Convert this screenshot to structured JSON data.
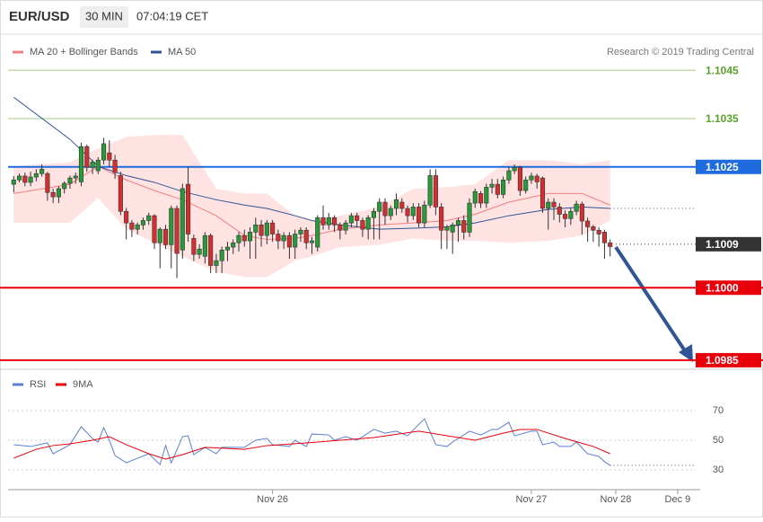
{
  "chart_data": [
    {
      "type": "candlestick",
      "title": "EUR/USD",
      "interval": "30 MIN",
      "time": "07:04:19 CET",
      "credit": "Research © 2019 Trading Central",
      "xlim": [
        -1,
        122
      ],
      "ylim": [
        1.09835,
        1.1048
      ],
      "up_color": "#279b37",
      "down_color": "#d32f2f",
      "candles": [
        [
          1.10214,
          1.10231,
          1.10197,
          1.10223
        ],
        [
          1.10223,
          1.10236,
          1.10218,
          1.10231
        ],
        [
          1.10231,
          1.10238,
          1.1021,
          1.10218
        ],
        [
          1.10218,
          1.1024,
          1.1021,
          1.10229
        ],
        [
          1.10229,
          1.10245,
          1.1022,
          1.10236
        ],
        [
          1.10236,
          1.10255,
          1.1023,
          1.10245
        ],
        [
          1.10236,
          1.1024,
          1.1018,
          1.10197
        ],
        [
          1.10197,
          1.10205,
          1.10175,
          1.10188
        ],
        [
          1.10188,
          1.1021,
          1.10175,
          1.10205
        ],
        [
          1.10205,
          1.1022,
          1.10195,
          1.10216
        ],
        [
          1.10216,
          1.10232,
          1.10205,
          1.10227
        ],
        [
          1.10227,
          1.10238,
          1.10215,
          1.10231
        ],
        [
          1.10219,
          1.103,
          1.1021,
          1.10292
        ],
        [
          1.10292,
          1.10296,
          1.1024,
          1.10249
        ],
        [
          1.10249,
          1.10265,
          1.10235,
          1.1026
        ],
        [
          1.10242,
          1.1027,
          1.10235,
          1.10264
        ],
        [
          1.10264,
          1.1031,
          1.10255,
          1.10298
        ],
        [
          1.10279,
          1.10305,
          1.1025,
          1.10264
        ],
        [
          1.10264,
          1.10275,
          1.10225,
          1.10238
        ],
        [
          1.10232,
          1.1024,
          1.1015,
          1.10158
        ],
        [
          1.10158,
          1.10165,
          1.101,
          1.10134
        ],
        [
          1.10134,
          1.1014,
          1.10105,
          1.10121
        ],
        [
          1.10121,
          1.10135,
          1.1011,
          1.1013
        ],
        [
          1.1013,
          1.10145,
          1.1012,
          1.10139
        ],
        [
          1.10139,
          1.10155,
          1.1013,
          1.10149
        ],
        [
          1.10149,
          1.10152,
          1.1008,
          1.10093
        ],
        [
          1.10093,
          1.10125,
          1.1004,
          1.10121
        ],
        [
          1.10121,
          1.1013,
          1.1008,
          1.10089
        ],
        [
          1.10089,
          1.1017,
          1.1004,
          1.10164
        ],
        [
          1.10164,
          1.1017,
          1.1002,
          1.10071
        ],
        [
          1.10078,
          1.10215,
          1.1006,
          1.10205
        ],
        [
          1.10214,
          1.1025,
          1.10095,
          1.10111
        ],
        [
          1.10102,
          1.1011,
          1.10055,
          1.10069
        ],
        [
          1.10069,
          1.1009,
          1.1006,
          1.1008
        ],
        [
          1.10065,
          1.10115,
          1.1005,
          1.10108
        ],
        [
          1.10108,
          1.10112,
          1.1003,
          1.10046
        ],
        [
          1.10046,
          1.1007,
          1.1003,
          1.10056
        ],
        [
          1.10056,
          1.10085,
          1.1003,
          1.10078
        ],
        [
          1.10078,
          1.10095,
          1.10055,
          1.10084
        ],
        [
          1.10084,
          1.101,
          1.1007,
          1.10093
        ],
        [
          1.10093,
          1.10115,
          1.10075,
          1.10108
        ],
        [
          1.10108,
          1.1012,
          1.10085,
          1.10097
        ],
        [
          1.10097,
          1.10125,
          1.1006,
          1.10115
        ],
        [
          1.10115,
          1.10145,
          1.1006,
          1.1013
        ],
        [
          1.1013,
          1.1014,
          1.10085,
          1.10108
        ],
        [
          1.10108,
          1.1014,
          1.1009,
          1.10134
        ],
        [
          1.10134,
          1.1014,
          1.10095,
          1.10111
        ],
        [
          1.10111,
          1.1012,
          1.1008,
          1.10097
        ],
        [
          1.10097,
          1.10115,
          1.1008,
          1.10108
        ],
        [
          1.10108,
          1.10115,
          1.1006,
          1.10084
        ],
        [
          1.10084,
          1.1012,
          1.1006,
          1.10111
        ],
        [
          1.10111,
          1.10125,
          1.10095,
          1.10119
        ],
        [
          1.10119,
          1.10125,
          1.1008,
          1.10093
        ],
        [
          1.10093,
          1.10105,
          1.1007,
          1.10097
        ],
        [
          1.10084,
          1.1015,
          1.10075,
          1.10145
        ],
        [
          1.10145,
          1.1017,
          1.1012,
          1.1013
        ],
        [
          1.1013,
          1.10155,
          1.1012,
          1.10145
        ],
        [
          1.10145,
          1.1015,
          1.10115,
          1.1013
        ],
        [
          1.1013,
          1.10135,
          1.101,
          1.10119
        ],
        [
          1.10119,
          1.1014,
          1.1011,
          1.10134
        ],
        [
          1.10134,
          1.10155,
          1.10125,
          1.10149
        ],
        [
          1.10149,
          1.10155,
          1.10125,
          1.10139
        ],
        [
          1.10139,
          1.10145,
          1.10105,
          1.10121
        ],
        [
          1.10121,
          1.1015,
          1.101,
          1.10145
        ],
        [
          1.10145,
          1.10165,
          1.101,
          1.10158
        ],
        [
          1.10158,
          1.10185,
          1.101,
          1.10177
        ],
        [
          1.10177,
          1.10185,
          1.1013,
          1.10149
        ],
        [
          1.10149,
          1.1017,
          1.1014,
          1.10164
        ],
        [
          1.10164,
          1.10195,
          1.1015,
          1.10182
        ],
        [
          1.10177,
          1.10185,
          1.10155,
          1.10164
        ],
        [
          1.10164,
          1.1017,
          1.10135,
          1.10149
        ],
        [
          1.10149,
          1.10175,
          1.1014,
          1.10167
        ],
        [
          1.10167,
          1.10175,
          1.10125,
          1.10134
        ],
        [
          1.10134,
          1.1018,
          1.10125,
          1.10171
        ],
        [
          1.10171,
          1.10245,
          1.10165,
          1.10232
        ],
        [
          1.10232,
          1.10245,
          1.1015,
          1.10167
        ],
        [
          1.10167,
          1.10175,
          1.1008,
          1.10119
        ],
        [
          1.10119,
          1.1013,
          1.1008,
          1.10126
        ],
        [
          1.10115,
          1.10135,
          1.1007,
          1.1013
        ],
        [
          1.1013,
          1.10145,
          1.10095,
          1.10139
        ],
        [
          1.10139,
          1.1015,
          1.101,
          1.10115
        ],
        [
          1.10115,
          1.10185,
          1.10105,
          1.10175
        ],
        [
          1.10175,
          1.10205,
          1.10165,
          1.10199
        ],
        [
          1.10195,
          1.102,
          1.10165,
          1.10175
        ],
        [
          1.10175,
          1.10215,
          1.10165,
          1.10208
        ],
        [
          1.10208,
          1.10225,
          1.10195,
          1.10214
        ],
        [
          1.10214,
          1.10225,
          1.10185,
          1.10193
        ],
        [
          1.10193,
          1.1023,
          1.10185,
          1.10223
        ],
        [
          1.10223,
          1.1025,
          1.10215,
          1.10242
        ],
        [
          1.10242,
          1.10255,
          1.10235,
          1.10249
        ],
        [
          1.10249,
          1.10252,
          1.1019,
          1.10201
        ],
        [
          1.10201,
          1.1023,
          1.10195,
          1.10223
        ],
        [
          1.10223,
          1.10238,
          1.10215,
          1.10231
        ],
        [
          1.10231,
          1.10236,
          1.10205,
          1.10219
        ],
        [
          1.10227,
          1.1023,
          1.10155,
          1.10164
        ],
        [
          1.10164,
          1.10185,
          1.1012,
          1.10177
        ],
        [
          1.10177,
          1.10185,
          1.1014,
          1.10167
        ],
        [
          1.10167,
          1.10175,
          1.10135,
          1.10152
        ],
        [
          1.10152,
          1.1016,
          1.10125,
          1.10143
        ],
        [
          1.10143,
          1.10165,
          1.1013,
          1.10158
        ],
        [
          1.10158,
          1.1018,
          1.1015,
          1.10173
        ],
        [
          1.10173,
          1.10178,
          1.1011,
          1.10138
        ],
        [
          1.10138,
          1.10145,
          1.10095,
          1.10126
        ],
        [
          1.10126,
          1.1013,
          1.10095,
          1.10119
        ],
        [
          1.10119,
          1.10125,
          1.10085,
          1.10111
        ],
        [
          1.10115,
          1.1012,
          1.1006,
          1.10093
        ],
        [
          1.10093,
          1.101,
          1.10065,
          1.10085
        ]
      ],
      "x": [
        0,
        10,
        15,
        20,
        25,
        30,
        36,
        41,
        45,
        50,
        53,
        58,
        65,
        71,
        77,
        82,
        88,
        95,
        101,
        106
      ],
      "series": [
        {
          "name": "MA 20 + Bollinger Bands",
          "color": "#f08080",
          "values": [
            1.10195,
            1.10214,
            1.10251,
            1.10223,
            1.10201,
            1.10182,
            1.10149,
            1.10108,
            1.101,
            1.10102,
            1.10108,
            1.10121,
            1.1013,
            1.10134,
            1.10139,
            1.10152,
            1.10177,
            1.10195,
            1.10195,
            1.10171
          ]
        },
        {
          "name": "MA 50",
          "color": "#2f5597",
          "values": [
            1.10394,
            1.10307,
            1.10251,
            1.10232,
            1.10218,
            1.10199,
            1.10182,
            1.10171,
            1.10164,
            1.10149,
            1.10139,
            1.1013,
            1.10121,
            1.10123,
            1.10126,
            1.10134,
            1.10149,
            1.10162,
            1.10167,
            1.10164
          ]
        }
      ],
      "bands": {
        "color": "#ffd6d6",
        "upper": [
          1.10251,
          1.1026,
          1.10288,
          1.10312,
          1.10316,
          1.10316,
          1.10205,
          1.10195,
          1.10195,
          1.10149,
          1.10139,
          1.10149,
          1.10167,
          1.10205,
          1.10208,
          1.10214,
          1.10264,
          1.10264,
          1.10256,
          1.10264
        ],
        "lower": [
          1.10134,
          1.10134,
          1.10186,
          1.10121,
          1.10093,
          1.10065,
          1.10033,
          1.10022,
          1.10022,
          1.10056,
          1.10065,
          1.10084,
          1.10089,
          1.10102,
          1.10097,
          1.10097,
          1.10093,
          1.10097,
          1.10108,
          1.10139
        ]
      },
      "levels": [
        {
          "value": 1.1045,
          "label": "1.1045",
          "color": "#5aa02c",
          "style": "text"
        },
        {
          "value": 1.1035,
          "label": "1.1035",
          "color": "#5aa02c",
          "style": "text"
        },
        {
          "value": 1.1025,
          "label": "1.1025",
          "color": "#1e6be0",
          "style": "box"
        },
        {
          "value": 1.1009,
          "label": "1.1009",
          "color": "#333333",
          "style": "dotted"
        },
        {
          "value": 1.1,
          "label": "1.1000",
          "color": "#e8000b",
          "style": "box"
        },
        {
          "value": 1.0985,
          "label": "1.0985",
          "color": "#e8000b",
          "style": "box"
        }
      ]
    },
    {
      "type": "line",
      "xlim": [
        -1,
        122
      ],
      "ylim": [
        20,
        80
      ],
      "yticks": [
        30,
        50,
        70
      ],
      "grid": true,
      "xticks": [
        {
          "value": 46,
          "label": "Nov 26"
        },
        {
          "value": 92,
          "label": "Nov 27"
        },
        {
          "value": 107,
          "label": "Nov 28"
        },
        {
          "value": 118,
          "label": "Dec 9"
        }
      ],
      "series": [
        {
          "name": "RSI",
          "color": "#5b7fd6",
          "x": [
            0,
            3,
            6,
            7,
            10,
            12,
            14,
            15,
            16,
            17,
            18,
            20,
            24,
            26,
            27,
            28,
            30,
            31,
            32,
            34,
            36,
            37,
            41,
            43,
            45,
            46,
            49,
            50,
            52,
            53,
            56,
            57,
            59,
            61,
            64,
            66,
            68,
            70,
            73,
            75,
            77,
            78,
            80,
            81,
            83,
            85,
            86,
            88,
            89,
            92,
            93,
            94,
            96,
            97,
            99,
            100,
            102,
            104,
            105,
            106
          ],
          "values": [
            47,
            45.8,
            48.2,
            40.9,
            47,
            59.1,
            51.2,
            48.8,
            58.5,
            50,
            39.7,
            34.8,
            40.9,
            33.6,
            46.4,
            34.8,
            52.4,
            53,
            40.3,
            45.2,
            40.9,
            45.2,
            45.2,
            50,
            51.2,
            47,
            45.8,
            50,
            45.8,
            54.2,
            53.6,
            50,
            52.4,
            50,
            57.3,
            54.8,
            56.1,
            53,
            64.5,
            47,
            45.8,
            48.8,
            53.6,
            56.1,
            53.6,
            57.3,
            57.3,
            62.1,
            53,
            56.1,
            56.1,
            47,
            48.8,
            45.8,
            45.8,
            48.8,
            40.9,
            39.1,
            35.5,
            33
          ]
        },
        {
          "name": "9MA",
          "color": "#e8000b",
          "x": [
            0,
            4,
            7,
            10,
            14,
            17,
            20,
            24,
            27,
            30,
            34,
            41,
            45,
            52,
            58,
            64,
            72,
            77,
            82,
            87,
            90,
            93,
            98,
            103,
            106
          ],
          "values": [
            37.9,
            43.9,
            46.4,
            47.6,
            50,
            52.4,
            47,
            40.9,
            37.3,
            40.3,
            45.2,
            43.9,
            46.4,
            48.2,
            50,
            51.8,
            56.1,
            53,
            50,
            54.8,
            57.3,
            57.3,
            51.2,
            45.8,
            40.9
          ]
        }
      ]
    }
  ]
}
